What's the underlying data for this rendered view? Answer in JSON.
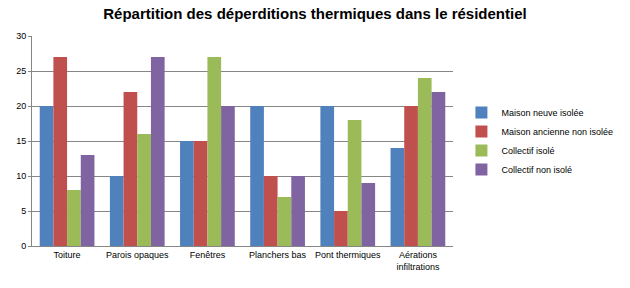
{
  "chart_data": {
    "type": "bar",
    "title": "Répartition des déperditions thermiques dans le résidentiel",
    "categories": [
      "Toiture",
      "Parois opaques",
      "Fenêtres",
      "Planchers bas",
      "Pont thermiques",
      "Aérations infiltrations"
    ],
    "series": [
      {
        "name": "Maison neuve isolée",
        "color": "#4f81bd",
        "values": [
          20,
          10,
          15,
          20,
          20,
          14
        ]
      },
      {
        "name": "Maison ancienne non isolée",
        "color": "#c0504d",
        "values": [
          27,
          22,
          15,
          10,
          5,
          20
        ]
      },
      {
        "name": "Collectif isolé",
        "color": "#9bbb59",
        "values": [
          8,
          16,
          27,
          7,
          18,
          24
        ]
      },
      {
        "name": "Collectif non isolé",
        "color": "#8064a2",
        "values": [
          13,
          27,
          20,
          10,
          9,
          22
        ]
      }
    ],
    "ylim": [
      0,
      30
    ],
    "yticks": [
      0,
      5,
      10,
      15,
      20,
      25,
      30
    ],
    "grid": true,
    "legend": "right"
  }
}
